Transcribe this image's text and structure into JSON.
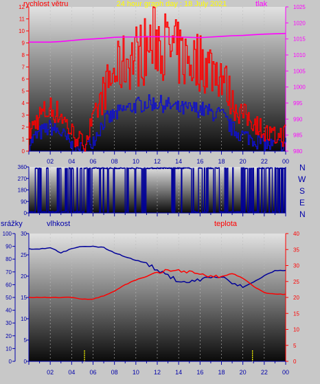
{
  "title": "24 hour graph day : 18 July 2021",
  "colors": {
    "background": "#c8c8c8",
    "title": "#ffff00",
    "wind": "#ff0000",
    "gust_base": "#1010cc",
    "pressure": "#ff00ff",
    "direction": "#000099",
    "humidity": "#000099",
    "temperature": "#ff0000",
    "precip": "#ffff00",
    "axis_blue": "#0000aa"
  },
  "panels": {
    "wind": {
      "left_label": "rychlost větru",
      "right_label": "tlak"
    },
    "direction": {
      "compass": [
        "N",
        "W",
        "S",
        "E",
        "N"
      ]
    },
    "climate": {
      "precip_label": "srážky",
      "humidity_label": "vlhkost",
      "temp_label": "teplota"
    }
  },
  "chart_data": [
    {
      "type": "line",
      "name": "wind_pressure",
      "x_ticks": [
        "02",
        "04",
        "06",
        "08",
        "10",
        "12",
        "14",
        "16",
        "18",
        "20",
        "22",
        "00"
      ],
      "hours": [
        0,
        1,
        2,
        3,
        4,
        5,
        6,
        7,
        8,
        9,
        10,
        11,
        12,
        13,
        14,
        15,
        16,
        17,
        18,
        19,
        20,
        21,
        22,
        23,
        24
      ],
      "ylim_left": [
        0,
        12
      ],
      "yticks_left": [
        "0",
        "1",
        "2",
        "3",
        "4",
        "5",
        "6",
        "7",
        "8",
        "9",
        "10",
        "11",
        "12"
      ],
      "ylim_right": [
        980,
        1025
      ],
      "yticks_right": [
        "980",
        "985",
        "990",
        "995",
        "1000",
        "1005",
        "1010",
        "1015",
        "1020",
        "1025"
      ],
      "series": [
        {
          "name": "rychlost větru",
          "values": [
            1.5,
            3,
            3.5,
            3,
            1.5,
            0.5,
            2.5,
            5,
            6.5,
            7.5,
            8,
            8.5,
            9.5,
            8.5,
            8,
            7.5,
            7.5,
            7,
            6.5,
            4,
            3,
            2.5,
            1.5,
            1,
            1.5
          ]
        },
        {
          "name": "tlak",
          "values": [
            1014,
            1014,
            1014,
            1014.2,
            1014.5,
            1014.8,
            1015,
            1015.2,
            1015.5,
            1015.6,
            1015.6,
            1015.7,
            1015.7,
            1015.7,
            1015.6,
            1015.5,
            1015.4,
            1015.6,
            1015.8,
            1016,
            1016.1,
            1016.3,
            1016.5,
            1016.6,
            1016.7
          ]
        }
      ],
      "base_series": [
        0.7,
        1.5,
        2,
        1.5,
        0.4,
        0.1,
        1,
        2.5,
        3,
        3.5,
        3.8,
        4,
        4,
        3.8,
        3.5,
        3.5,
        3.5,
        3.2,
        3,
        1.8,
        1.3,
        1,
        0.6,
        0.4,
        0.6
      ]
    },
    {
      "type": "line",
      "name": "wind_direction",
      "x_ticks": [],
      "ylim": [
        0,
        360
      ],
      "yticks": [
        "0",
        "90",
        "180",
        "270",
        "360"
      ]
    },
    {
      "type": "line",
      "name": "climate",
      "x_ticks": [
        "02",
        "04",
        "06",
        "08",
        "10",
        "12",
        "14",
        "16",
        "18",
        "20",
        "22",
        "00"
      ],
      "hours": [
        0,
        1,
        2,
        3,
        4,
        5,
        6,
        7,
        8,
        9,
        10,
        11,
        12,
        13,
        14,
        15,
        16,
        17,
        18,
        19,
        20,
        21,
        22,
        23,
        24
      ],
      "ylim_precip": [
        0,
        100
      ],
      "yticks_precip": [
        "0",
        "10",
        "20",
        "30",
        "40",
        "50",
        "60",
        "70",
        "80",
        "90",
        "100"
      ],
      "ylim_humidity": [
        0,
        30
      ],
      "yticks_humidity": [
        "0",
        "5",
        "10",
        "15",
        "20",
        "25",
        "30"
      ],
      "ylim_temp": [
        0,
        40
      ],
      "yticks_temp": [
        "0",
        "5",
        "10",
        "15",
        "20",
        "25",
        "30",
        "35",
        "40"
      ],
      "series": [
        {
          "name": "vlhkost",
          "values": [
            88,
            88,
            89,
            85,
            88,
            90,
            90,
            89,
            85,
            82,
            79,
            77,
            71,
            67,
            63,
            62,
            64,
            66,
            66,
            61,
            58,
            62,
            67,
            71,
            71
          ]
        },
        {
          "name": "teplota",
          "values": [
            20,
            20,
            20,
            20,
            20,
            19.5,
            19.5,
            20.5,
            22,
            24,
            25.5,
            26.5,
            27.5,
            28.5,
            28.5,
            28,
            27.5,
            26.5,
            26.5,
            27.5,
            26,
            23.5,
            21.5,
            21,
            21
          ]
        }
      ],
      "precip_marks": [
        5.2,
        20.9
      ]
    }
  ]
}
